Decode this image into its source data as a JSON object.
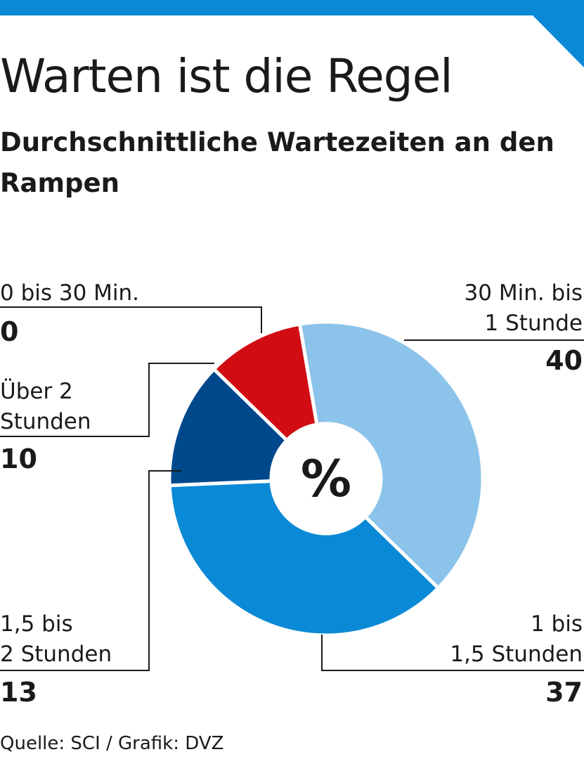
{
  "colors": {
    "accent": "#0a8ad6"
  },
  "header": {
    "title": "Warten ist die Regel",
    "subtitle": "Durchschnittliche Wartezeiten an den Rampen"
  },
  "chart_data": {
    "type": "pie",
    "title": "Warten ist die Regel",
    "subtitle": "Durchschnittliche Wartezeiten an den Rampen",
    "center_label": "%",
    "donut": true,
    "categories": [
      "0 bis 30 Min.",
      "30 Min. bis 1 Stunde",
      "1 bis 1,5 Stunden",
      "1,5 bis 2 Stunden",
      "Über 2 Stunden"
    ],
    "values": [
      0,
      40,
      37,
      13,
      10
    ],
    "colors": [
      "#b0b0b0",
      "#8cc3ea",
      "#0a8ad6",
      "#00488c",
      "#d10c13"
    ],
    "labels": [
      {
        "lines": [
          "0 bis 30 Min."
        ],
        "value": "0"
      },
      {
        "lines": [
          "30 Min. bis",
          "1 Stunde"
        ],
        "value": "40"
      },
      {
        "lines": [
          "1 bis",
          "1,5 Stunden"
        ],
        "value": "37"
      },
      {
        "lines": [
          "1,5 bis",
          "2 Stunden"
        ],
        "value": "13"
      },
      {
        "lines": [
          "Über 2",
          "Stunden"
        ],
        "value": "10"
      }
    ]
  },
  "footer": {
    "source": "Quelle: SCI / Grafik: DVZ"
  }
}
